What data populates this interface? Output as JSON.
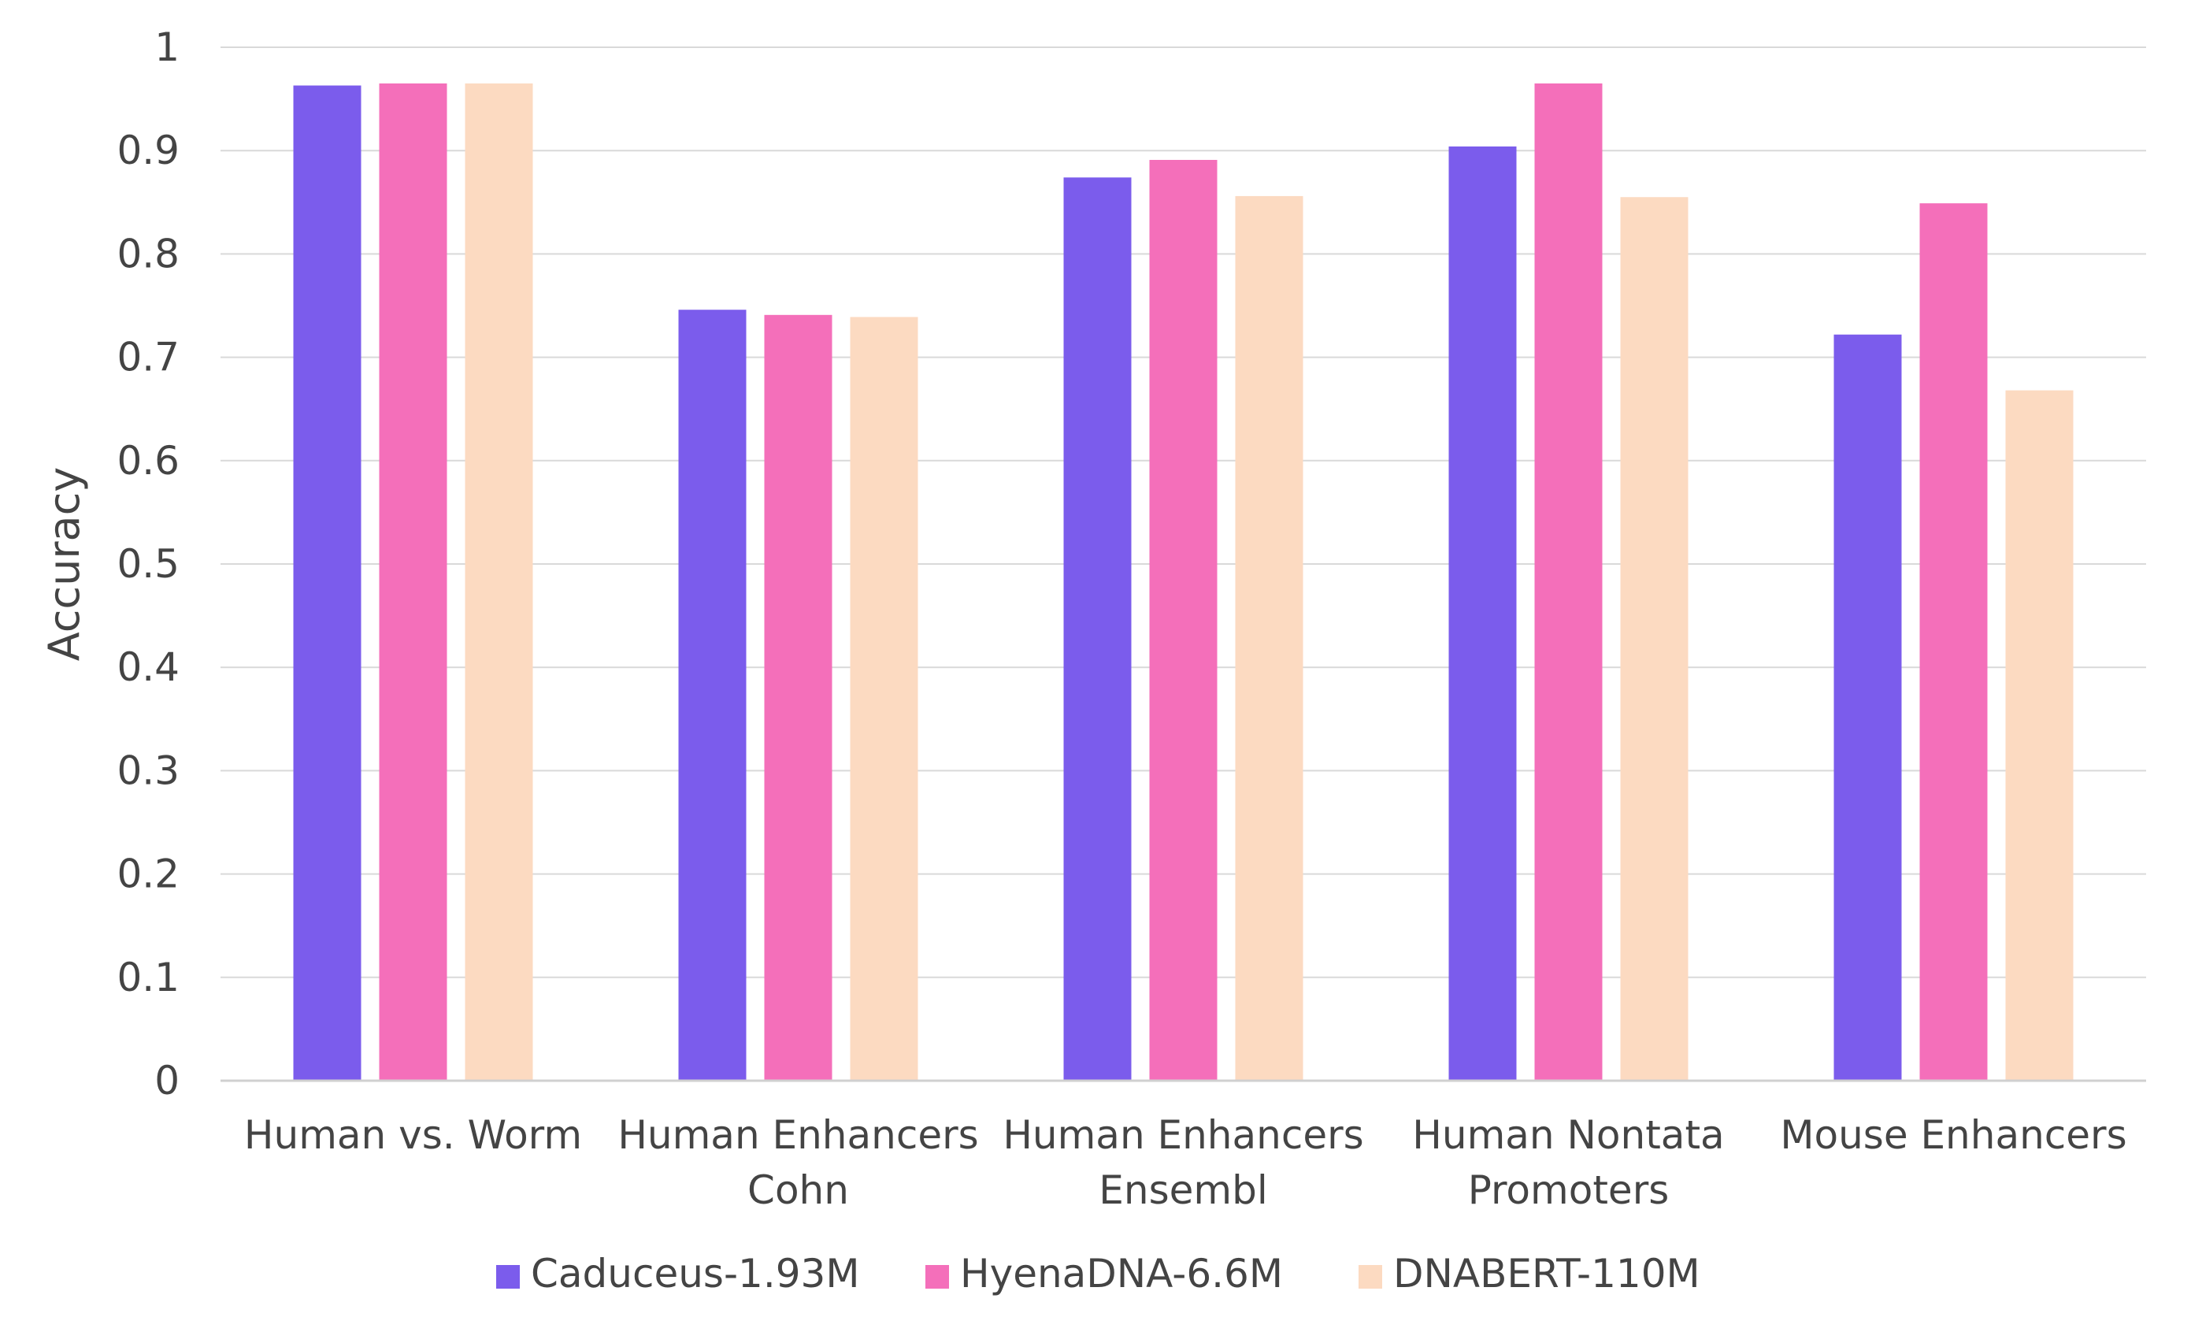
{
  "chart_data": {
    "type": "bar",
    "title": "",
    "xlabel": "",
    "ylabel": "Accuracy",
    "ylim": [
      0,
      1
    ],
    "yticks": [
      "0",
      "0.1",
      "0.2",
      "0.3",
      "0.4",
      "0.5",
      "0.6",
      "0.7",
      "0.8",
      "0.9",
      "1"
    ],
    "grid": true,
    "legend_position": "bottom",
    "categories": [
      [
        "Human vs. Worm"
      ],
      [
        "Human Enhancers",
        "Cohn"
      ],
      [
        "Human Enhancers",
        "Ensembl"
      ],
      [
        "Human Nontata",
        "Promoters"
      ],
      [
        "Mouse Enhancers"
      ]
    ],
    "series": [
      {
        "name": "Caduceus-1.93M",
        "color": "#7b5cec",
        "values": [
          0.963,
          0.746,
          0.874,
          0.904,
          0.722
        ]
      },
      {
        "name": "HyenaDNA-6.6M",
        "color": "#f46fba",
        "values": [
          0.965,
          0.741,
          0.891,
          0.965,
          0.849
        ]
      },
      {
        "name": "DNABERT-110M",
        "color": "#fcdac1",
        "values": [
          0.965,
          0.739,
          0.856,
          0.855,
          0.668
        ]
      }
    ]
  }
}
